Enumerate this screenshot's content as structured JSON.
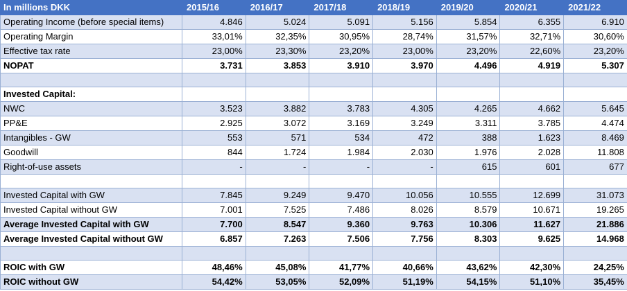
{
  "header": {
    "label": "In millions DKK",
    "years": [
      "2015/16",
      "2016/17",
      "2017/18",
      "2018/19",
      "2019/20",
      "2020/21",
      "2021/22"
    ]
  },
  "rows": [
    {
      "label": "Operating Income (before special items)",
      "values": [
        "4.846",
        "5.024",
        "5.091",
        "5.156",
        "5.854",
        "6.355",
        "6.910"
      ]
    },
    {
      "label": "Operating Margin",
      "values": [
        "33,01%",
        "32,35%",
        "30,95%",
        "28,74%",
        "31,57%",
        "32,71%",
        "30,60%"
      ]
    },
    {
      "label": "Effective tax rate",
      "values": [
        "23,00%",
        "23,30%",
        "23,20%",
        "23,00%",
        "23,20%",
        "22,60%",
        "23,20%"
      ]
    },
    {
      "label": "NOPAT",
      "values": [
        "3.731",
        "3.853",
        "3.910",
        "3.970",
        "4.496",
        "4.919",
        "5.307"
      ]
    },
    {
      "label": "",
      "values": [
        "",
        "",
        "",
        "",
        "",
        "",
        ""
      ]
    },
    {
      "label": "Invested Capital:",
      "values": [
        "",
        "",
        "",
        "",
        "",
        "",
        ""
      ]
    },
    {
      "label": "NWC",
      "values": [
        "3.523",
        "3.882",
        "3.783",
        "4.305",
        "4.265",
        "4.662",
        "5.645"
      ]
    },
    {
      "label": "PP&E",
      "values": [
        "2.925",
        "3.072",
        "3.169",
        "3.249",
        "3.311",
        "3.785",
        "4.474"
      ]
    },
    {
      "label": "Intangibles - GW",
      "values": [
        "553",
        "571",
        "534",
        "472",
        "388",
        "1.623",
        "8.469"
      ]
    },
    {
      "label": "Goodwill",
      "values": [
        "844",
        "1.724",
        "1.984",
        "2.030",
        "1.976",
        "2.028",
        "11.808"
      ]
    },
    {
      "label": "Right-of-use assets",
      "values": [
        "-",
        "-",
        "-",
        "-",
        "615",
        "601",
        "677"
      ]
    },
    {
      "label": "",
      "values": [
        "",
        "",
        "",
        "",
        "",
        "",
        ""
      ]
    },
    {
      "label": "Invested Capital with GW",
      "values": [
        "7.845",
        "9.249",
        "9.470",
        "10.056",
        "10.555",
        "12.699",
        "31.073"
      ]
    },
    {
      "label": "Invested Capital without GW",
      "values": [
        "7.001",
        "7.525",
        "7.486",
        "8.026",
        "8.579",
        "10.671",
        "19.265"
      ]
    },
    {
      "label": "Average Invested Capital with GW",
      "values": [
        "7.700",
        "8.547",
        "9.360",
        "9.763",
        "10.306",
        "11.627",
        "21.886"
      ]
    },
    {
      "label": "Average Invested Capital without GW",
      "values": [
        "6.857",
        "7.263",
        "7.506",
        "7.756",
        "8.303",
        "9.625",
        "14.968"
      ]
    },
    {
      "label": "",
      "values": [
        "",
        "",
        "",
        "",
        "",
        "",
        ""
      ]
    },
    {
      "label": "ROIC with GW",
      "values": [
        "48,46%",
        "45,08%",
        "41,77%",
        "40,66%",
        "43,62%",
        "42,30%",
        "24,25%"
      ]
    },
    {
      "label": "ROIC without GW",
      "values": [
        "54,42%",
        "53,05%",
        "52,09%",
        "51,19%",
        "54,15%",
        "51,10%",
        "35,45%"
      ]
    }
  ],
  "colors": {
    "header_bg": "#4472c4",
    "band_bg": "#d9e1f2",
    "border": "#9ab0d4"
  }
}
